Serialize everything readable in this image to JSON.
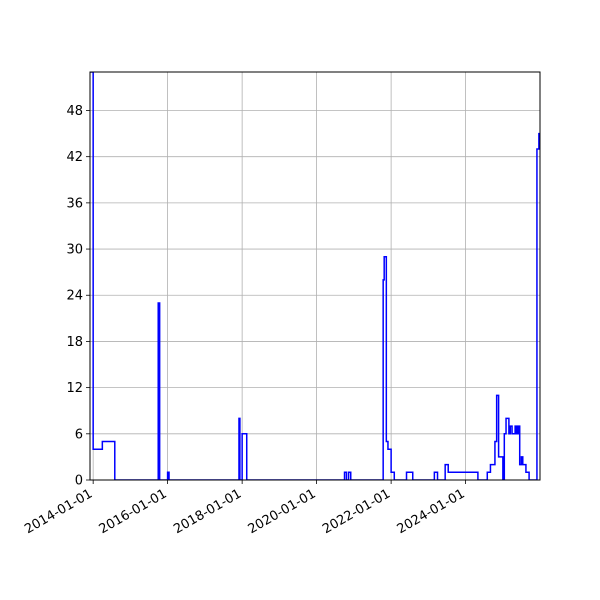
{
  "chart_data": {
    "type": "line",
    "drawstyle": "steps-post",
    "title": "",
    "xlabel": "",
    "ylabel": "",
    "xlim": [
      "2013-12-01",
      "2025-12-31"
    ],
    "ylim": [
      0,
      53
    ],
    "x_ticks": [
      "2014-01-01",
      "2016-01-01",
      "2018-01-01",
      "2020-01-01",
      "2022-01-01",
      "2024-01-01"
    ],
    "y_ticks": [
      0,
      6,
      12,
      18,
      24,
      30,
      36,
      42,
      48
    ],
    "grid": true,
    "line_color": "#0000ff",
    "series": [
      {
        "x": [
          "2013-12-01",
          "2014-01-01",
          "2014-04-01",
          "2014-08-01",
          "2015-08-01",
          "2015-08-15",
          "2015-10-01",
          "2015-10-15",
          "2016-01-01",
          "2016-01-15",
          "2017-12-01",
          "2017-12-10",
          "2018-01-01",
          "2018-02-15",
          "2018-03-01",
          "2020-10-01",
          "2020-10-20",
          "2020-11-10",
          "2020-12-01",
          "2021-10-01",
          "2021-10-15",
          "2021-10-25",
          "2021-11-15",
          "2021-12-01",
          "2022-01-01",
          "2022-02-01",
          "2022-04-01",
          "2022-06-01",
          "2022-08-01",
          "2023-01-01",
          "2023-03-01",
          "2023-04-01",
          "2023-05-01",
          "2023-06-15",
          "2023-07-15",
          "2024-05-01",
          "2024-06-01",
          "2024-08-01",
          "2024-09-01",
          "2024-10-15",
          "2024-11-01",
          "2024-11-20",
          "2025-01-01",
          "2025-01-15",
          "2025-02-01",
          "2025-03-01",
          "2025-03-15",
          "2025-04-01",
          "2025-05-01",
          "2025-05-10",
          "2025-05-20",
          "2025-05-30",
          "2025-06-01",
          "2025-06-15",
          "2025-07-01",
          "2025-07-15",
          "2025-08-15",
          "2025-09-15",
          "2025-11-15",
          "2025-12-01",
          "2025-12-20",
          "2025-12-31"
        ],
        "y": [
          53,
          4,
          5,
          0,
          0,
          0,
          23,
          0,
          1,
          0,
          8,
          0,
          6,
          0,
          0,
          1,
          0,
          1,
          0,
          0,
          26,
          29,
          5,
          4,
          1,
          0,
          0,
          1,
          0,
          0,
          1,
          0,
          0,
          2,
          1,
          0,
          0,
          1,
          2,
          5,
          11,
          3,
          0,
          6,
          8,
          6,
          7,
          6,
          7,
          6,
          7,
          6,
          7,
          2,
          3,
          2,
          1,
          0,
          0,
          43,
          45,
          45
        ]
      }
    ]
  }
}
